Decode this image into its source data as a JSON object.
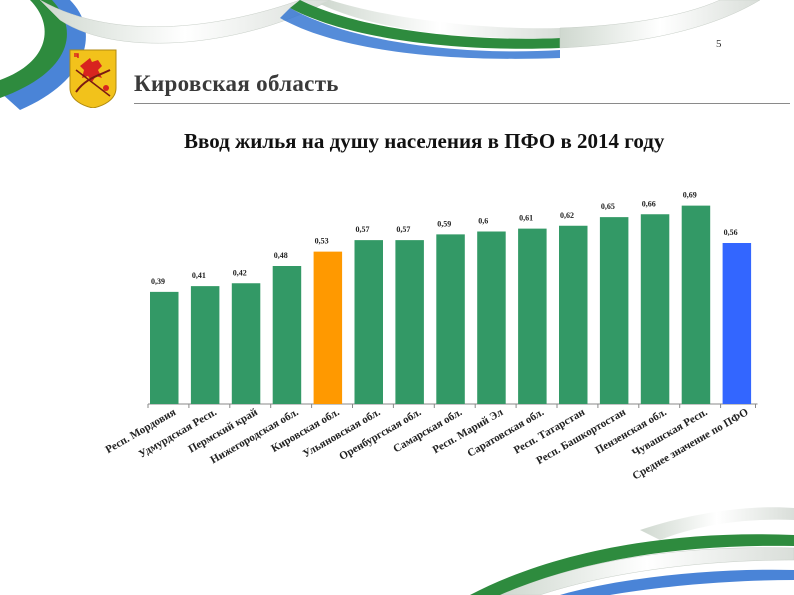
{
  "header": {
    "page_number": "5",
    "region_title": "Кировская область"
  },
  "slide": {
    "title": "Ввод жилья на душу населения в ПФО в 2014 году"
  },
  "colors": {
    "default_bar": "#339966",
    "kirov_bar": "#ff9900",
    "average_bar": "#3366ff",
    "ribbon_green": "#2e8b3e",
    "ribbon_blue": "#2a6fd0"
  },
  "chart_data": {
    "type": "bar",
    "title": "Ввод жилья на душу населения в ПФО в 2014 году",
    "xlabel": "",
    "ylabel": "",
    "ylim": [
      0,
      0.8
    ],
    "grid": false,
    "legend": "none",
    "categories": [
      "Респ. Мордовия",
      "Удмурдская Респ.",
      "Пермский край",
      "Нижегородская обл.",
      "Кировская обл.",
      "Ульяновская обл.",
      "Оренбургская обл.",
      "Самарская обл.",
      "Респ. Марий Эл",
      "Саратовская обл.",
      "Респ. Татарстан",
      "Респ. Башкортостан",
      "Пензенская обл.",
      "Чувашская Респ.",
      "Среднее значение по ПФО"
    ],
    "values": [
      0.39,
      0.41,
      0.42,
      0.48,
      0.53,
      0.57,
      0.57,
      0.59,
      0.6,
      0.61,
      0.62,
      0.65,
      0.66,
      0.69,
      0.56
    ],
    "value_labels": [
      "0,39",
      "0,41",
      "0,42",
      "0,48",
      "0,53",
      "0,57",
      "0,57",
      "0,59",
      "0,6",
      "0,61",
      "0,62",
      "0,65",
      "0,66",
      "0,69",
      "0,56"
    ],
    "highlight": {
      "Кировская обл.": "kirov_bar",
      "Среднее значение по ПФО": "average_bar"
    }
  }
}
